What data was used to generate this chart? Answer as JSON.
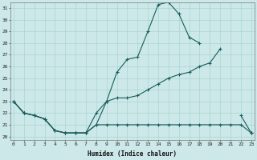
{
  "xlabel": "Humidex (Indice chaleur)",
  "background_color": "#cce8e8",
  "grid_color": "#aad4d4",
  "line_color": "#1a5c5c",
  "xlim": [
    0,
    23
  ],
  "ylim": [
    20,
    31
  ],
  "xticks": [
    0,
    1,
    2,
    3,
    4,
    5,
    6,
    7,
    8,
    9,
    10,
    11,
    12,
    13,
    14,
    15,
    16,
    17,
    18,
    19,
    20,
    21,
    22,
    23
  ],
  "yticks": [
    20,
    21,
    22,
    23,
    24,
    25,
    26,
    27,
    28,
    29,
    30,
    31
  ],
  "hours": [
    0,
    1,
    2,
    3,
    4,
    5,
    6,
    7,
    8,
    9,
    10,
    11,
    12,
    13,
    14,
    15,
    16,
    17,
    18,
    19,
    20,
    21,
    22,
    23
  ],
  "line_max": [
    23.0,
    22.0,
    21.8,
    21.5,
    20.5,
    20.3,
    20.3,
    20.3,
    21.0,
    23.0,
    25.5,
    26.6,
    26.8,
    29.0,
    31.3,
    31.5,
    30.5,
    28.5,
    28.0,
    null,
    null,
    null,
    21.8,
    20.3
  ],
  "line_mean": [
    23.0,
    22.0,
    21.8,
    21.5,
    20.5,
    20.3,
    20.3,
    20.3,
    22.0,
    23.0,
    23.3,
    23.3,
    23.5,
    24.0,
    24.5,
    25.0,
    25.3,
    25.5,
    26.0,
    26.3,
    27.5,
    null,
    null,
    20.3
  ],
  "line_min": [
    23.0,
    22.0,
    21.8,
    21.5,
    20.5,
    20.3,
    20.3,
    20.3,
    21.0,
    21.0,
    21.0,
    21.0,
    21.0,
    21.0,
    21.0,
    21.0,
    21.0,
    21.0,
    21.0,
    21.0,
    21.0,
    21.0,
    21.0,
    20.3
  ]
}
